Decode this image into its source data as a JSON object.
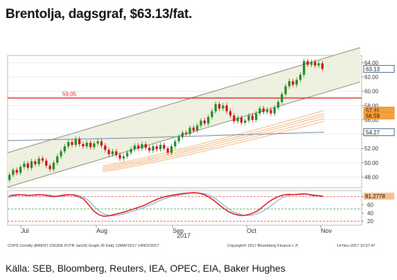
{
  "header": {
    "title": "Brentolja, dagsgraf, $63.13/fat."
  },
  "footer": {
    "source": "Källa: SEB, Bloomberg, Reuters, IEA, OPEC, EIA, Baker Hughes",
    "bloomberg_left": "COFS Comdty (BRENT CRUDE FUTR  Jan18) Graph 26  Daily 12MAY2017-14NOV2017",
    "bloomberg_copyright": "Copyright© 2017 Bloomberg Finance L.P.",
    "bloomberg_date": "14-Nov-2017 10:57:47"
  },
  "colors": {
    "up": "#1e8a1e",
    "down": "#cc1111",
    "channel": "#8a8a7a",
    "channel_fill": "#eef0e0",
    "resistance": "#e41a1a",
    "ma_long": "#6e86a6",
    "ma_ribbon": "#f0a860",
    "stoch_k": "#e31a1a",
    "stoch_d": "#7fb3d5"
  },
  "chart_data": [
    {
      "type": "candlestick",
      "title": "",
      "x_ticks": [
        "Jul",
        "Aug",
        "Sep",
        "Oct",
        "Nov"
      ],
      "x_year_label": "2017",
      "y_ticks": [
        48,
        50,
        52,
        54,
        56,
        58,
        60,
        62,
        64
      ],
      "y_tick_labels": [
        "48.00",
        "50.00",
        "52.00",
        "54.00",
        "56.00",
        "58.00",
        "60.00",
        "62.00",
        "64.00"
      ],
      "ylim": [
        46.5,
        65.0
      ],
      "grid": true,
      "resistance": {
        "value": 59.05,
        "label": "59.05"
      },
      "value_badges": [
        {
          "label": "63.13",
          "value": 63.13,
          "color": "#1a3a6a"
        },
        {
          "label": "57.31",
          "value": 57.31,
          "color": "#f08a00"
        },
        {
          "label": "56.59",
          "value": 56.59,
          "color": "#f08a00"
        },
        {
          "label": "54.27",
          "value": 54.27,
          "color": "#1a3a6a"
        }
      ],
      "channel": {
        "upper": [
          {
            "t": 0,
            "v": 51.4
          },
          {
            "t": 1,
            "v": 64.6
          }
        ],
        "lower": [
          {
            "t": 0,
            "v": 46.6
          },
          {
            "t": 1,
            "v": 59.8
          }
        ]
      },
      "moving_average_long": [
        {
          "t": 0,
          "v": 53.1
        },
        {
          "t": 0.42,
          "v": 53.5
        },
        {
          "t": 1,
          "v": 54.27
        }
      ],
      "moving_average_ribbon": [
        {
          "offset": 0.0,
          "end": 57.31
        },
        {
          "offset": -0.35,
          "end": 56.9
        },
        {
          "offset": -0.7,
          "end": 56.59
        },
        {
          "offset": -1.05,
          "end": 56.2
        },
        {
          "offset": -1.4,
          "end": 55.8
        }
      ],
      "series": [
        {
          "open": 47.6,
          "close": 48.3
        },
        {
          "open": 48.3,
          "close": 49.0
        },
        {
          "open": 49.0,
          "close": 48.6
        },
        {
          "open": 48.6,
          "close": 49.4
        },
        {
          "open": 49.4,
          "close": 49.9
        },
        {
          "open": 49.9,
          "close": 49.3
        },
        {
          "open": 49.3,
          "close": 50.2
        },
        {
          "open": 50.2,
          "close": 49.8
        },
        {
          "open": 49.8,
          "close": 50.6
        },
        {
          "open": 50.6,
          "close": 50.3
        },
        {
          "open": 50.3,
          "close": 49.6
        },
        {
          "open": 49.6,
          "close": 49.1
        },
        {
          "open": 49.1,
          "close": 50.0
        },
        {
          "open": 50.0,
          "close": 50.9
        },
        {
          "open": 50.9,
          "close": 51.6
        },
        {
          "open": 51.6,
          "close": 52.3
        },
        {
          "open": 52.3,
          "close": 52.9
        },
        {
          "open": 52.9,
          "close": 52.5
        },
        {
          "open": 52.5,
          "close": 53.3
        },
        {
          "open": 53.3,
          "close": 52.6
        },
        {
          "open": 52.6,
          "close": 52.3
        },
        {
          "open": 52.3,
          "close": 52.8
        },
        {
          "open": 52.8,
          "close": 52.2
        },
        {
          "open": 52.2,
          "close": 52.7
        },
        {
          "open": 52.7,
          "close": 53.0
        },
        {
          "open": 53.0,
          "close": 52.4
        },
        {
          "open": 52.4,
          "close": 51.8
        },
        {
          "open": 51.8,
          "close": 51.2
        },
        {
          "open": 51.2,
          "close": 51.6
        },
        {
          "open": 51.6,
          "close": 51.1
        },
        {
          "open": 51.1,
          "close": 50.6
        },
        {
          "open": 50.6,
          "close": 50.9
        },
        {
          "open": 50.9,
          "close": 51.4
        },
        {
          "open": 51.4,
          "close": 51.9
        },
        {
          "open": 51.9,
          "close": 52.4
        },
        {
          "open": 52.4,
          "close": 52.0
        },
        {
          "open": 52.0,
          "close": 52.6
        },
        {
          "open": 52.6,
          "close": 52.1
        },
        {
          "open": 52.1,
          "close": 51.7
        },
        {
          "open": 51.7,
          "close": 52.3
        },
        {
          "open": 52.3,
          "close": 51.9
        },
        {
          "open": 51.9,
          "close": 52.5
        },
        {
          "open": 52.5,
          "close": 52.0
        },
        {
          "open": 52.0,
          "close": 51.4
        },
        {
          "open": 51.4,
          "close": 52.3
        },
        {
          "open": 52.3,
          "close": 53.0
        },
        {
          "open": 53.0,
          "close": 53.6
        },
        {
          "open": 53.6,
          "close": 54.2
        },
        {
          "open": 54.2,
          "close": 54.0
        },
        {
          "open": 54.0,
          "close": 54.9
        },
        {
          "open": 54.9,
          "close": 54.5
        },
        {
          "open": 54.5,
          "close": 55.2
        },
        {
          "open": 55.2,
          "close": 55.9
        },
        {
          "open": 55.9,
          "close": 55.5
        },
        {
          "open": 55.5,
          "close": 56.4
        },
        {
          "open": 56.4,
          "close": 57.2
        },
        {
          "open": 57.2,
          "close": 58.2
        },
        {
          "open": 58.2,
          "close": 57.6
        },
        {
          "open": 57.6,
          "close": 58.0
        },
        {
          "open": 58.0,
          "close": 57.2
        },
        {
          "open": 57.2,
          "close": 56.6
        },
        {
          "open": 56.6,
          "close": 55.8
        },
        {
          "open": 55.8,
          "close": 56.3
        },
        {
          "open": 56.3,
          "close": 55.6
        },
        {
          "open": 55.6,
          "close": 55.9
        },
        {
          "open": 55.9,
          "close": 56.6
        },
        {
          "open": 56.6,
          "close": 56.0
        },
        {
          "open": 56.0,
          "close": 56.9
        },
        {
          "open": 56.9,
          "close": 57.6
        },
        {
          "open": 57.6,
          "close": 57.1
        },
        {
          "open": 57.1,
          "close": 57.4
        },
        {
          "open": 57.4,
          "close": 56.9
        },
        {
          "open": 56.9,
          "close": 57.7
        },
        {
          "open": 57.7,
          "close": 58.5
        },
        {
          "open": 58.5,
          "close": 59.6
        },
        {
          "open": 59.6,
          "close": 60.7
        },
        {
          "open": 60.7,
          "close": 61.4
        },
        {
          "open": 61.4,
          "close": 60.9
        },
        {
          "open": 60.9,
          "close": 61.6
        },
        {
          "open": 61.6,
          "close": 62.3
        },
        {
          "open": 62.3,
          "close": 64.2
        },
        {
          "open": 64.2,
          "close": 63.7
        },
        {
          "open": 63.7,
          "close": 64.1
        },
        {
          "open": 64.1,
          "close": 63.6
        },
        {
          "open": 63.6,
          "close": 63.9
        },
        {
          "open": 63.9,
          "close": 63.13
        }
      ]
    },
    {
      "type": "line",
      "title": "",
      "y_ticks": [
        20,
        40,
        60,
        80
      ],
      "y_tick_labels": [
        "20",
        "40",
        "60",
        "80"
      ],
      "ylim": [
        10,
        95
      ],
      "reference_lines": [
        80,
        50,
        20
      ],
      "value_badges": [
        {
          "label": "81.2778",
          "value": 81.28,
          "color": "#f2c28a"
        }
      ],
      "series": [
        {
          "name": "",
          "values": [
            82,
            84,
            85,
            84,
            83,
            84,
            85,
            84,
            82,
            80,
            82,
            84,
            85,
            84,
            80,
            74,
            60,
            45,
            36,
            32,
            33,
            36,
            39,
            42,
            46,
            50,
            54,
            58,
            64,
            70,
            75,
            79,
            82,
            84,
            86,
            88,
            89,
            90,
            89,
            86,
            80,
            72,
            62,
            52,
            44,
            38,
            35,
            34,
            36,
            40,
            46,
            56,
            66,
            74,
            80,
            84,
            86,
            85,
            86,
            87,
            86,
            83,
            82.5,
            81.28
          ]
        },
        {
          "name": "",
          "values": [
            78,
            82,
            84,
            85,
            84,
            83,
            84,
            85,
            84,
            82,
            81,
            82,
            84,
            85,
            83,
            79,
            70,
            58,
            46,
            38,
            34,
            33,
            35,
            38,
            41,
            45,
            49,
            53,
            58,
            63,
            69,
            74,
            78,
            82,
            84,
            86,
            88,
            89,
            89,
            88,
            85,
            79,
            70,
            60,
            51,
            43,
            38,
            35,
            34,
            35,
            39,
            45,
            53,
            62,
            71,
            78,
            83,
            85,
            85,
            86,
            86,
            85,
            83,
            82
          ]
        }
      ]
    }
  ]
}
